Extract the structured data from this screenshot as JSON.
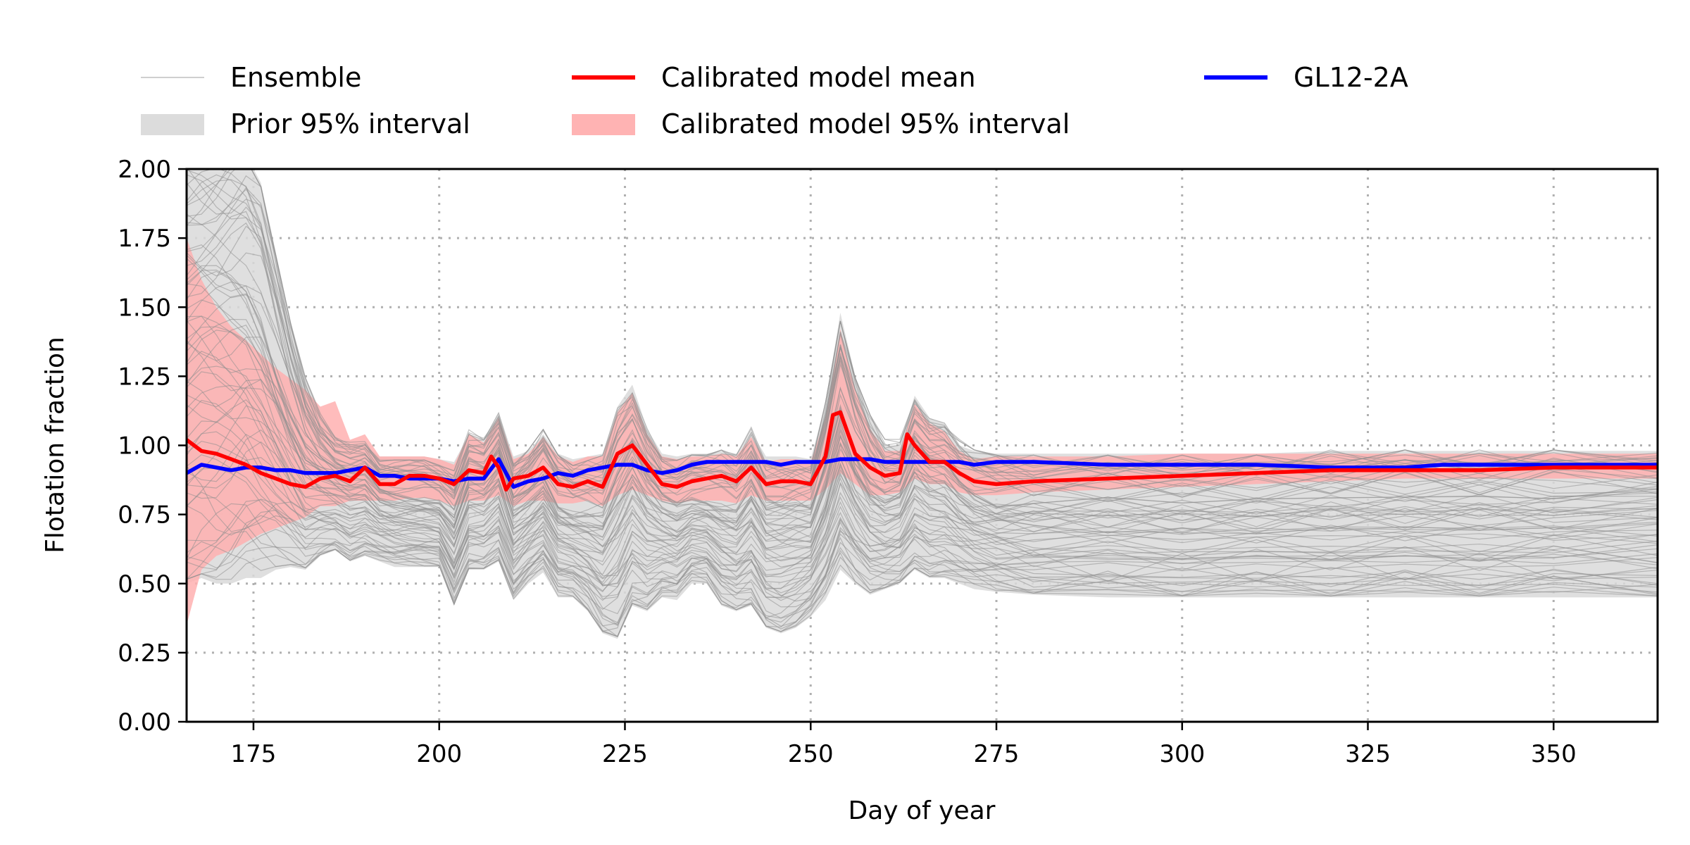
{
  "chart_data": {
    "type": "line",
    "xlabel": "Day of year",
    "ylabel": "Flotation fraction",
    "xlim": [
      166,
      364
    ],
    "ylim": [
      0,
      2
    ],
    "x_ticks": [
      175,
      200,
      225,
      250,
      275,
      300,
      325,
      350
    ],
    "y_ticks": [
      "0.00",
      "0.25",
      "0.50",
      "0.75",
      "1.00",
      "1.25",
      "1.50",
      "1.75",
      "2.00"
    ],
    "grid": true,
    "grid_style": "dotted",
    "legend_position": "top (above plot), three columns",
    "legend": [
      {
        "label": "Ensemble",
        "kind": "line-thin",
        "color": "#bfbfbf"
      },
      {
        "label": "Prior 95% interval",
        "kind": "patch",
        "color": "#dcdcdc"
      },
      {
        "label": "Calibrated model mean",
        "kind": "line",
        "color": "#ff0000"
      },
      {
        "label": "Calibrated model 95% interval",
        "kind": "patch",
        "color": "#ffb3b3"
      },
      {
        "label": "GL12-2A",
        "kind": "line",
        "color": "#0000ff"
      }
    ],
    "colors": {
      "ensemble": "#8f8f8f",
      "prior_interval": "#d9d9d9",
      "calibrated_mean": "#ff0000",
      "calibrated_interval": "#ffb0b0",
      "observed": "#0000ff"
    },
    "series": [
      {
        "name": "GL12-2A",
        "x": [
          166,
          168,
          170,
          172,
          174,
          176,
          178,
          180,
          182,
          184,
          186,
          188,
          190,
          192,
          194,
          196,
          198,
          200,
          202,
          204,
          206,
          208,
          210,
          212,
          214,
          216,
          218,
          220,
          222,
          224,
          226,
          228,
          230,
          232,
          234,
          236,
          238,
          240,
          242,
          244,
          246,
          248,
          250,
          252,
          254,
          256,
          258,
          260,
          262,
          264,
          266,
          268,
          270,
          272,
          275,
          280,
          290,
          300,
          310,
          320,
          330,
          335,
          340,
          350,
          364
        ],
        "y": [
          0.9,
          0.93,
          0.92,
          0.91,
          0.92,
          0.92,
          0.91,
          0.91,
          0.9,
          0.9,
          0.9,
          0.91,
          0.92,
          0.89,
          0.89,
          0.88,
          0.88,
          0.88,
          0.87,
          0.88,
          0.88,
          0.95,
          0.85,
          0.87,
          0.88,
          0.9,
          0.89,
          0.91,
          0.92,
          0.93,
          0.93,
          0.91,
          0.9,
          0.91,
          0.93,
          0.94,
          0.94,
          0.94,
          0.94,
          0.94,
          0.93,
          0.94,
          0.94,
          0.94,
          0.95,
          0.95,
          0.95,
          0.94,
          0.94,
          0.94,
          0.94,
          0.94,
          0.94,
          0.93,
          0.94,
          0.94,
          0.93,
          0.93,
          0.93,
          0.92,
          0.92,
          0.93,
          0.93,
          0.93,
          0.93
        ]
      },
      {
        "name": "Calibrated model mean",
        "x": [
          166,
          168,
          170,
          172,
          174,
          176,
          178,
          180,
          182,
          184,
          186,
          188,
          190,
          192,
          194,
          196,
          198,
          200,
          202,
          204,
          206,
          207,
          208,
          209,
          210,
          212,
          214,
          216,
          218,
          220,
          222,
          224,
          226,
          228,
          230,
          232,
          234,
          236,
          238,
          240,
          242,
          244,
          246,
          248,
          250,
          252,
          253,
          254,
          256,
          258,
          260,
          262,
          263,
          264,
          266,
          268,
          270,
          272,
          275,
          280,
          290,
          300,
          310,
          320,
          330,
          340,
          350,
          364
        ],
        "y": [
          1.02,
          0.98,
          0.97,
          0.95,
          0.93,
          0.9,
          0.88,
          0.86,
          0.85,
          0.88,
          0.89,
          0.87,
          0.92,
          0.86,
          0.86,
          0.89,
          0.89,
          0.88,
          0.86,
          0.91,
          0.9,
          0.96,
          0.92,
          0.84,
          0.88,
          0.89,
          0.92,
          0.86,
          0.85,
          0.87,
          0.85,
          0.97,
          1.0,
          0.93,
          0.86,
          0.85,
          0.87,
          0.88,
          0.89,
          0.87,
          0.92,
          0.86,
          0.87,
          0.87,
          0.86,
          0.96,
          1.11,
          1.12,
          0.97,
          0.92,
          0.89,
          0.9,
          1.04,
          1.0,
          0.94,
          0.94,
          0.9,
          0.87,
          0.86,
          0.87,
          0.88,
          0.89,
          0.9,
          0.91,
          0.91,
          0.91,
          0.92,
          0.92
        ]
      }
    ],
    "calibrated_interval": {
      "x": [
        166,
        168,
        170,
        172,
        174,
        176,
        178,
        180,
        182,
        184,
        186,
        188,
        190,
        192,
        194,
        196,
        198,
        200,
        202,
        204,
        206,
        208,
        210,
        212,
        214,
        216,
        218,
        220,
        222,
        224,
        226,
        228,
        230,
        232,
        234,
        236,
        238,
        240,
        242,
        244,
        246,
        248,
        250,
        252,
        254,
        256,
        258,
        260,
        262,
        264,
        266,
        268,
        270,
        272,
        275,
        280,
        290,
        300,
        310,
        320,
        330,
        340,
        350,
        364
      ],
      "lower": [
        0.35,
        0.55,
        0.6,
        0.62,
        0.65,
        0.68,
        0.7,
        0.72,
        0.74,
        0.78,
        0.78,
        0.8,
        0.8,
        0.8,
        0.8,
        0.81,
        0.81,
        0.8,
        0.78,
        0.8,
        0.8,
        0.82,
        0.78,
        0.8,
        0.8,
        0.79,
        0.79,
        0.8,
        0.78,
        0.82,
        0.84,
        0.82,
        0.8,
        0.79,
        0.8,
        0.8,
        0.8,
        0.79,
        0.82,
        0.8,
        0.8,
        0.8,
        0.8,
        0.84,
        0.9,
        0.86,
        0.82,
        0.82,
        0.83,
        0.88,
        0.86,
        0.86,
        0.83,
        0.82,
        0.82,
        0.83,
        0.84,
        0.85,
        0.86,
        0.87,
        0.88,
        0.88,
        0.88,
        0.88
      ],
      "upper": [
        1.75,
        1.6,
        1.5,
        1.43,
        1.38,
        1.33,
        1.28,
        1.24,
        1.2,
        1.14,
        1.16,
        1.02,
        1.04,
        0.96,
        0.96,
        0.96,
        0.96,
        0.95,
        0.93,
        1.04,
        1.01,
        1.1,
        0.95,
        0.97,
        1.03,
        0.96,
        0.94,
        0.96,
        0.96,
        1.12,
        1.19,
        1.04,
        0.96,
        0.95,
        0.96,
        0.96,
        0.97,
        0.96,
        1.03,
        0.94,
        0.95,
        0.95,
        0.94,
        1.1,
        1.42,
        1.2,
        1.06,
        0.98,
        0.98,
        1.15,
        1.08,
        1.05,
        0.98,
        0.95,
        0.96,
        0.96,
        0.96,
        0.97,
        0.97,
        0.97,
        0.97,
        0.97,
        0.97,
        0.97
      ]
    },
    "prior_interval": {
      "x": [
        166,
        168,
        170,
        172,
        174,
        176,
        178,
        180,
        182,
        184,
        186,
        188,
        190,
        192,
        194,
        196,
        198,
        200,
        202,
        204,
        206,
        208,
        210,
        212,
        214,
        216,
        218,
        220,
        222,
        224,
        226,
        228,
        230,
        232,
        234,
        236,
        238,
        240,
        242,
        244,
        246,
        248,
        250,
        252,
        254,
        256,
        258,
        260,
        262,
        264,
        266,
        268,
        270,
        272,
        275,
        280,
        290,
        300,
        310,
        320,
        330,
        340,
        350,
        364
      ],
      "lower": [
        0.5,
        0.52,
        0.5,
        0.5,
        0.52,
        0.52,
        0.55,
        0.56,
        0.55,
        0.6,
        0.62,
        0.58,
        0.6,
        0.58,
        0.56,
        0.56,
        0.56,
        0.56,
        0.42,
        0.55,
        0.55,
        0.58,
        0.44,
        0.5,
        0.54,
        0.45,
        0.45,
        0.4,
        0.32,
        0.3,
        0.42,
        0.4,
        0.45,
        0.44,
        0.5,
        0.5,
        0.42,
        0.4,
        0.42,
        0.34,
        0.32,
        0.34,
        0.38,
        0.44,
        0.55,
        0.5,
        0.46,
        0.48,
        0.5,
        0.55,
        0.52,
        0.52,
        0.5,
        0.48,
        0.47,
        0.46,
        0.45,
        0.45,
        0.45,
        0.45,
        0.45,
        0.45,
        0.45,
        0.45
      ],
      "upper": [
        2.05,
        2.05,
        2.05,
        2.05,
        2.05,
        1.95,
        1.7,
        1.45,
        1.25,
        1.12,
        1.02,
        1.0,
        1.0,
        0.96,
        0.96,
        0.96,
        0.96,
        0.95,
        0.94,
        1.04,
        1.02,
        1.12,
        0.96,
        0.98,
        1.04,
        0.97,
        0.95,
        0.96,
        0.97,
        1.14,
        1.22,
        1.06,
        0.97,
        0.96,
        0.97,
        0.97,
        0.98,
        0.97,
        1.05,
        0.96,
        0.96,
        0.96,
        0.95,
        1.15,
        1.48,
        1.25,
        1.1,
        1.0,
        1.0,
        1.18,
        1.1,
        1.08,
        1.0,
        0.98,
        0.97,
        0.97,
        0.97,
        0.97,
        0.97,
        0.98,
        0.98,
        0.98,
        0.98,
        0.98
      ]
    }
  }
}
